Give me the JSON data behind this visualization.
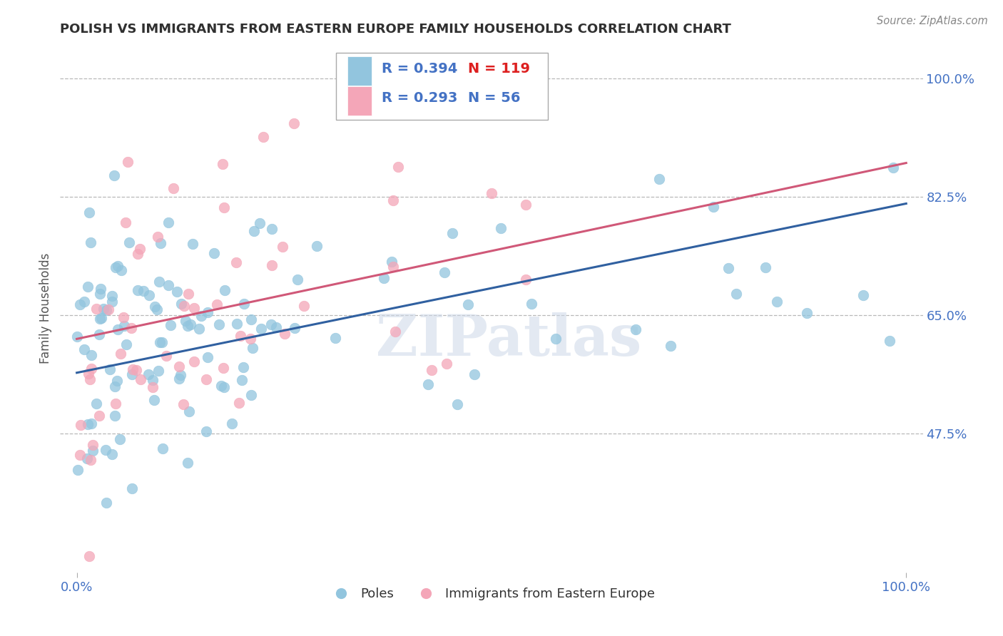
{
  "title": "POLISH VS IMMIGRANTS FROM EASTERN EUROPE FAMILY HOUSEHOLDS CORRELATION CHART",
  "source": "Source: ZipAtlas.com",
  "ylabel": "Family Households",
  "xlim": [
    -0.02,
    1.02
  ],
  "ylim": [
    0.27,
    1.05
  ],
  "yticks": [
    0.475,
    0.65,
    0.825,
    1.0
  ],
  "ytick_labels": [
    "47.5%",
    "65.0%",
    "82.5%",
    "100.0%"
  ],
  "xtick_labels": [
    "0.0%",
    "100.0%"
  ],
  "xticks": [
    0.0,
    1.0
  ],
  "blue_R": 0.394,
  "blue_N": 119,
  "pink_R": 0.293,
  "pink_N": 56,
  "blue_color": "#92c5de",
  "pink_color": "#f4a6b8",
  "blue_line_color": "#3060a0",
  "pink_line_color": "#d05878",
  "title_color": "#303030",
  "tick_color": "#4472c4",
  "grid_color": "#b8b8b8",
  "watermark": "ZIPatlas",
  "legend_color": "#4472c4",
  "blue_trend": [
    0.0,
    1.0,
    0.565,
    0.815
  ],
  "pink_trend": [
    0.0,
    1.0,
    0.615,
    0.875
  ]
}
